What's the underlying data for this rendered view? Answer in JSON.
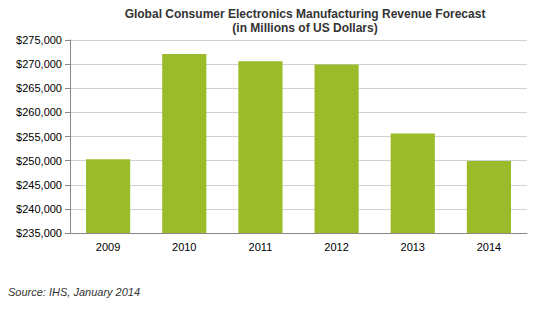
{
  "chart_data": {
    "type": "bar",
    "title": "Global Consumer Electronics Manufacturing Revenue Forecast",
    "subtitle": "(in Millions of US Dollars)",
    "annotation": "Source: IHS, January 2014",
    "categories": [
      "2009",
      "2010",
      "2011",
      "2012",
      "2013",
      "2014"
    ],
    "values": [
      250300,
      272100,
      270600,
      269900,
      255600,
      249900
    ],
    "color": "#9bbb2a",
    "ylim": [
      235000,
      275000
    ],
    "yticks": [
      {
        "value": 235000,
        "label": "$235,000"
      },
      {
        "value": 240000,
        "label": "$240,000"
      },
      {
        "value": 245000,
        "label": "$245,000"
      },
      {
        "value": 250000,
        "label": "$250,000"
      },
      {
        "value": 255000,
        "label": "$255,000"
      },
      {
        "value": 260000,
        "label": "$260,000"
      },
      {
        "value": 265000,
        "label": "$265,000"
      },
      {
        "value": 270000,
        "label": "$270,000"
      },
      {
        "value": 275000,
        "label": "$275,000"
      }
    ],
    "grid": true
  }
}
